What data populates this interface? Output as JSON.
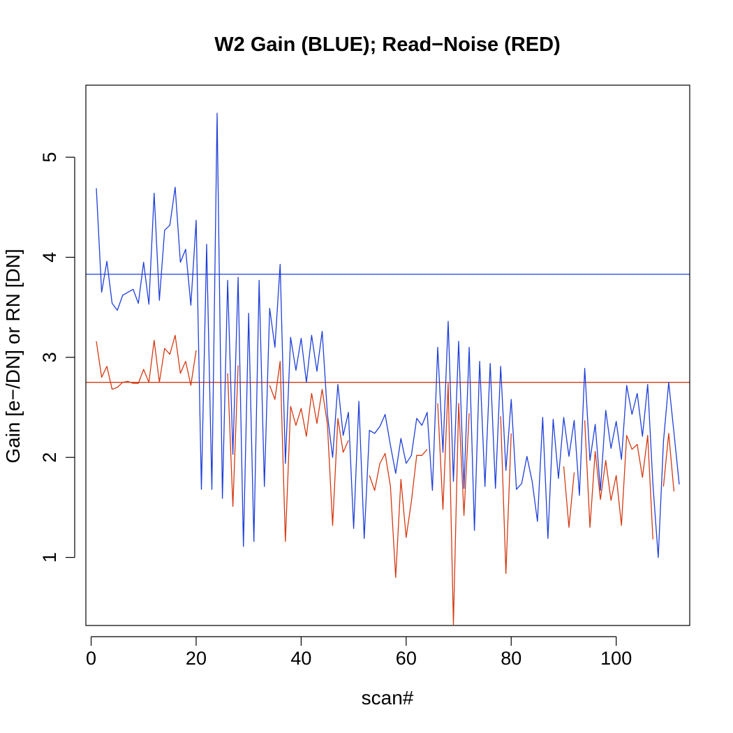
{
  "chart_data": {
    "type": "line",
    "title": "W2 Gain (BLUE); Read−Noise (RED)",
    "xlabel": "scan#",
    "ylabel": "Gain [e−/DN]  or  RN [DN]",
    "xlim": [
      -1,
      114
    ],
    "ylim": [
      0.32,
      5.72
    ],
    "x_ticks": [
      0,
      20,
      40,
      60,
      80,
      100
    ],
    "y_ticks": [
      1,
      2,
      3,
      4,
      5
    ],
    "grid": false,
    "legend": "none",
    "colors": {
      "gain": "#1f3fd8",
      "read_noise": "#d33a12"
    },
    "reference_lines": [
      {
        "series": "gain",
        "y": 3.83
      },
      {
        "series": "read_noise",
        "y": 2.75
      }
    ],
    "series": [
      {
        "key": "gain",
        "color": "#1f3fd8",
        "points": [
          [
            1,
            4.69
          ],
          [
            2,
            3.65
          ],
          [
            3,
            3.96
          ],
          [
            4,
            3.54
          ],
          [
            5,
            3.47
          ],
          [
            6,
            3.62
          ],
          [
            7,
            3.65
          ],
          [
            8,
            3.68
          ],
          [
            9,
            3.54
          ],
          [
            10,
            3.95
          ],
          [
            11,
            3.53
          ],
          [
            12,
            4.64
          ],
          [
            13,
            3.57
          ],
          [
            14,
            4.27
          ],
          [
            15,
            4.32
          ],
          [
            16,
            4.7
          ],
          [
            17,
            3.95
          ],
          [
            18,
            4.08
          ],
          [
            19,
            3.52
          ],
          [
            20,
            4.37
          ],
          [
            21,
            1.68
          ],
          [
            22,
            4.13
          ],
          [
            23,
            1.68
          ],
          [
            24,
            5.44
          ],
          [
            25,
            1.59
          ],
          [
            26,
            3.77
          ],
          [
            27,
            2.03
          ],
          [
            28,
            3.8
          ],
          [
            29,
            1.11
          ],
          [
            30,
            3.44
          ],
          [
            31,
            1.16
          ],
          [
            32,
            3.77
          ],
          [
            33,
            1.71
          ],
          [
            34,
            3.49
          ],
          [
            35,
            3.1
          ],
          [
            36,
            3.93
          ],
          [
            37,
            1.94
          ],
          [
            38,
            3.2
          ],
          [
            39,
            2.87
          ],
          [
            40,
            3.19
          ],
          [
            41,
            2.75
          ],
          [
            42,
            3.22
          ],
          [
            43,
            2.86
          ],
          [
            44,
            3.26
          ],
          [
            45,
            2.43
          ],
          [
            46,
            2.0
          ],
          [
            47,
            2.73
          ],
          [
            48,
            2.22
          ],
          [
            49,
            2.45
          ],
          [
            50,
            1.29
          ],
          [
            51,
            2.56
          ],
          [
            52,
            1.19
          ],
          [
            53,
            2.27
          ],
          [
            54,
            2.24
          ],
          [
            55,
            2.31
          ],
          [
            56,
            2.43
          ],
          [
            57,
            2.12
          ],
          [
            58,
            1.84
          ],
          [
            59,
            2.19
          ],
          [
            60,
            1.94
          ],
          [
            61,
            2.02
          ],
          [
            62,
            2.39
          ],
          [
            63,
            2.32
          ],
          [
            64,
            2.45
          ],
          [
            65,
            1.67
          ],
          [
            66,
            3.1
          ],
          [
            67,
            2.05
          ],
          [
            68,
            3.36
          ],
          [
            69,
            1.76
          ],
          [
            70,
            3.16
          ],
          [
            71,
            1.69
          ],
          [
            72,
            3.1
          ],
          [
            73,
            1.27
          ],
          [
            74,
            2.96
          ],
          [
            75,
            1.71
          ],
          [
            76,
            2.94
          ],
          [
            77,
            1.69
          ],
          [
            78,
            2.91
          ],
          [
            79,
            1.87
          ],
          [
            80,
            2.58
          ],
          [
            81,
            1.68
          ],
          [
            82,
            1.74
          ],
          [
            83,
            2.01
          ],
          [
            84,
            1.76
          ],
          [
            85,
            1.36
          ],
          [
            86,
            2.4
          ],
          [
            87,
            1.19
          ],
          [
            88,
            2.38
          ],
          [
            89,
            1.79
          ],
          [
            90,
            2.4
          ],
          [
            91,
            2.01
          ],
          [
            92,
            2.37
          ],
          [
            93,
            1.62
          ],
          [
            94,
            2.89
          ],
          [
            95,
            1.97
          ],
          [
            96,
            2.33
          ],
          [
            97,
            1.67
          ],
          [
            98,
            2.47
          ],
          [
            99,
            2.09
          ],
          [
            100,
            2.36
          ],
          [
            101,
            1.98
          ],
          [
            102,
            2.72
          ],
          [
            103,
            2.43
          ],
          [
            104,
            2.64
          ],
          [
            105,
            2.21
          ],
          [
            106,
            2.73
          ],
          [
            107,
            1.73
          ],
          [
            108,
            1.0
          ],
          [
            109,
            2.16
          ],
          [
            110,
            2.75
          ],
          [
            111,
            2.25
          ],
          [
            112,
            1.73
          ]
        ]
      },
      {
        "key": "read_noise",
        "color": "#d33a12",
        "points": [
          [
            1,
            3.16
          ],
          [
            2,
            2.8
          ],
          [
            3,
            2.91
          ],
          [
            4,
            2.68
          ],
          [
            5,
            2.7
          ],
          [
            6,
            2.75
          ],
          [
            7,
            2.76
          ],
          [
            8,
            2.74
          ],
          [
            9,
            2.74
          ],
          [
            10,
            2.88
          ],
          [
            11,
            2.75
          ],
          [
            12,
            3.17
          ],
          [
            13,
            2.75
          ],
          [
            14,
            3.09
          ],
          [
            15,
            3.03
          ],
          [
            16,
            3.22
          ],
          [
            17,
            2.84
          ],
          [
            18,
            2.96
          ],
          [
            19,
            2.72
          ],
          [
            20,
            3.07
          ],
          null,
          [
            26,
            2.84
          ],
          [
            27,
            1.51
          ],
          [
            28,
            2.92
          ],
          null,
          [
            34,
            2.72
          ],
          [
            35,
            2.58
          ],
          [
            36,
            2.96
          ],
          [
            37,
            1.16
          ],
          [
            38,
            2.51
          ],
          [
            39,
            2.32
          ],
          [
            40,
            2.49
          ],
          [
            41,
            2.21
          ],
          [
            42,
            2.64
          ],
          [
            43,
            2.34
          ],
          [
            44,
            2.68
          ],
          [
            45,
            2.33
          ],
          [
            46,
            1.32
          ],
          [
            47,
            2.39
          ],
          [
            48,
            2.05
          ],
          [
            49,
            2.17
          ],
          null,
          [
            53,
            1.82
          ],
          [
            54,
            1.67
          ],
          [
            55,
            1.94
          ],
          [
            56,
            2.04
          ],
          [
            57,
            1.71
          ],
          [
            58,
            0.8
          ],
          [
            59,
            1.78
          ],
          [
            60,
            1.2
          ],
          [
            61,
            1.56
          ],
          [
            62,
            2.02
          ],
          [
            63,
            2.02
          ],
          [
            64,
            2.08
          ],
          null,
          [
            66,
            2.54
          ],
          [
            67,
            1.48
          ],
          [
            68,
            2.74
          ],
          [
            69,
            0.33
          ],
          [
            70,
            2.54
          ],
          [
            71,
            1.42
          ],
          [
            72,
            2.44
          ],
          null,
          [
            78,
            2.41
          ],
          [
            79,
            0.84
          ],
          [
            80,
            2.24
          ],
          null,
          [
            90,
            1.91
          ],
          [
            91,
            1.3
          ],
          [
            92,
            1.85
          ],
          null,
          [
            94,
            2.37
          ],
          [
            95,
            1.3
          ],
          [
            96,
            2.06
          ],
          [
            97,
            1.58
          ],
          [
            98,
            1.97
          ],
          [
            99,
            1.57
          ],
          [
            100,
            1.82
          ],
          [
            101,
            1.32
          ],
          [
            102,
            2.22
          ],
          [
            103,
            2.08
          ],
          [
            104,
            2.13
          ],
          [
            105,
            1.8
          ],
          [
            106,
            2.22
          ],
          [
            107,
            1.18
          ],
          null,
          [
            109,
            1.71
          ],
          [
            110,
            2.24
          ],
          [
            111,
            1.66
          ]
        ]
      }
    ]
  }
}
